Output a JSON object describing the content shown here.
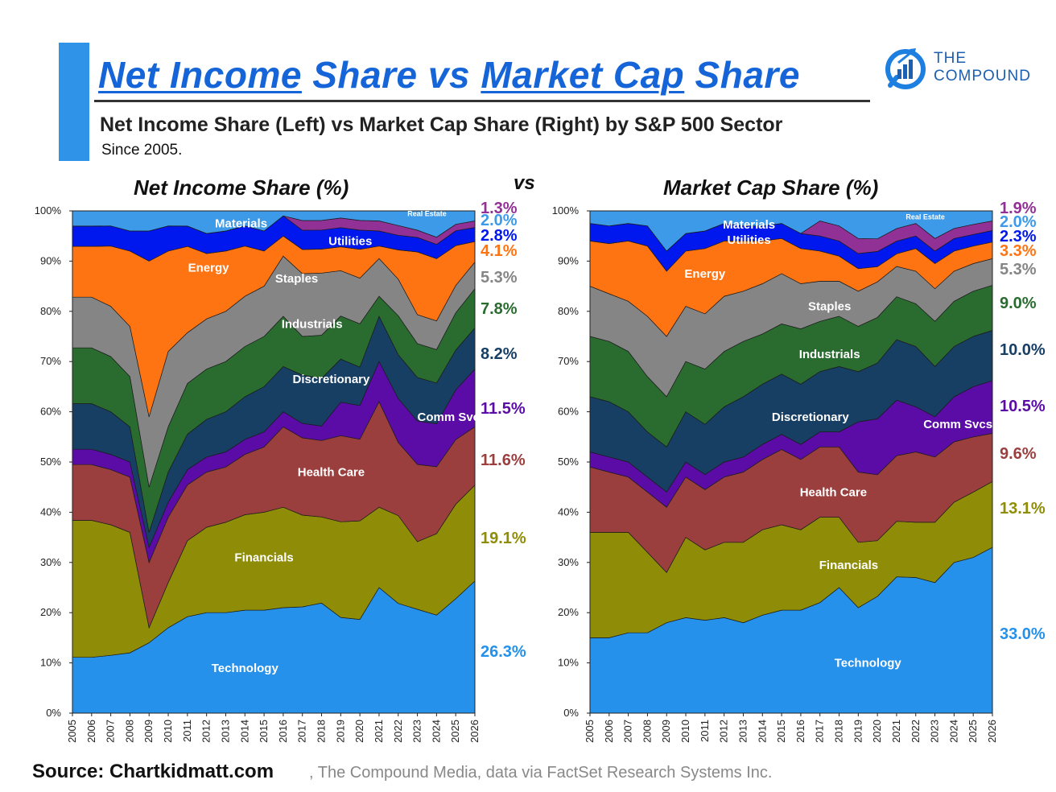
{
  "header": {
    "title_part1": "Net Income",
    "title_part2": " Share vs ",
    "title_part3": "Market Cap",
    "title_part4": " Share",
    "subtitle": "Net Income Share (Left) vs Market Cap Share (Right) by S&P 500 Sector",
    "since": "Since 2005.",
    "vs": "vs"
  },
  "logo": {
    "line1": "THE",
    "line2": "COMPOUND",
    "icon": "compound-logo-icon"
  },
  "footer": {
    "source_bold": "Source: Chartkidmatt.com",
    "source_rest": ", The Compound Media, data via FactSet Research Systems Inc."
  },
  "colors": {
    "Technology": "#2591ea",
    "Financials": "#8f8d08",
    "Health Care": "#9a3f3e",
    "Comm Svcs": "#5c0ca6",
    "Discretionary": "#173e63",
    "Industrials": "#2a6c2f",
    "Staples": "#858585",
    "Energy": "#ff7412",
    "Utilities": "#0017ee",
    "Real Estate": "#923195",
    "Materials": "#3d9ae8",
    "accent": "#1565d8"
  },
  "chart_data": [
    {
      "type": "area",
      "stacked": true,
      "title": "Net Income Share (%)",
      "x": [
        2005,
        2006,
        2007,
        2008,
        2009,
        2010,
        2011,
        2012,
        2013,
        2014,
        2015,
        2016,
        2017,
        2018,
        2019,
        2020,
        2021,
        2022,
        2023,
        2024,
        2025,
        2026
      ],
      "xlim": [
        2005,
        2026
      ],
      "ylim": [
        0,
        100
      ],
      "yticks": [
        "0%",
        "10%",
        "20%",
        "30%",
        "40%",
        "50%",
        "60%",
        "70%",
        "80%",
        "90%",
        "100%"
      ],
      "series": [
        {
          "name": "Technology",
          "label": "Technology",
          "values": [
            11,
            11,
            11.5,
            12,
            14,
            17,
            19,
            20,
            20,
            20.5,
            20.5,
            21,
            22,
            23,
            20,
            19.5,
            25,
            22.5,
            21.5,
            20.5,
            23,
            26.3
          ]
        },
        {
          "name": "Financials",
          "label": "Financials",
          "values": [
            27,
            27,
            26,
            24,
            3,
            9,
            15,
            17,
            18,
            19,
            19.5,
            20,
            19,
            18,
            20,
            20.5,
            16,
            18,
            14,
            17,
            19,
            19.1
          ]
        },
        {
          "name": "Health Care",
          "label": "Health Care",
          "values": [
            11,
            11,
            11,
            11,
            13,
            13,
            11,
            11,
            11,
            12,
            13,
            16,
            16,
            16,
            18,
            17,
            21,
            15,
            16,
            14,
            13,
            11.6
          ]
        },
        {
          "name": "Comm Svcs",
          "label": "Comm Svcs",
          "values": [
            3,
            3,
            3,
            3,
            3,
            3,
            3,
            3,
            3,
            3,
            3,
            3,
            3,
            3,
            7,
            7,
            8,
            9,
            9,
            9,
            10,
            11.5
          ]
        },
        {
          "name": "Discretionary",
          "label": "Discretionary",
          "values": [
            9,
            9,
            8.5,
            7,
            3,
            6,
            7,
            7.5,
            8,
            8.5,
            9,
            9,
            10,
            10,
            9,
            8,
            9,
            9,
            9,
            8.5,
            8,
            8.2
          ]
        },
        {
          "name": "Industrials",
          "label": "Industrials",
          "values": [
            11,
            11,
            11,
            10,
            9,
            9,
            10,
            10,
            10,
            10,
            10,
            10,
            8,
            9,
            9,
            9,
            4,
            8,
            7,
            7,
            7.5,
            7.8
          ]
        },
        {
          "name": "Staples",
          "label": "Staples",
          "values": [
            10,
            10,
            10,
            10,
            14,
            15,
            10,
            10,
            10,
            10,
            10,
            12,
            13,
            13,
            9.5,
            9.5,
            7.5,
            7.5,
            6,
            6,
            5.5,
            5.3
          ]
        },
        {
          "name": "Energy",
          "label": "Energy",
          "values": [
            10,
            10,
            12,
            15,
            31,
            20,
            17,
            13,
            12,
            10,
            7,
            4,
            5,
            5,
            5,
            6,
            2.5,
            6,
            13,
            13,
            8,
            4.1
          ]
        },
        {
          "name": "Utilities",
          "label": "Utilities",
          "values": [
            4,
            4,
            4,
            4,
            6,
            5,
            4,
            4,
            4,
            4,
            4,
            4,
            4,
            4,
            4,
            4,
            3,
            3,
            3,
            3,
            3,
            2.8
          ]
        },
        {
          "name": "Real Estate",
          "label": "Real Estate",
          "values": [
            0,
            0,
            0,
            0,
            0,
            0,
            0,
            0,
            0,
            0,
            0,
            0,
            2,
            2,
            2,
            2,
            2,
            2,
            1.5,
            1.5,
            1.3,
            1.3
          ]
        },
        {
          "name": "Materials",
          "label": "Materials",
          "values": [
            3,
            3,
            3,
            4,
            4,
            3,
            3,
            4.5,
            4,
            3,
            4,
            1,
            2,
            2,
            1.5,
            2,
            2,
            3,
            4,
            5.5,
            2.7,
            2.0
          ]
        }
      ],
      "right_labels": [
        {
          "sector": "Real Estate",
          "text": "1.3%"
        },
        {
          "sector": "Materials",
          "text": "2.0%"
        },
        {
          "sector": "Utilities",
          "text": "2.8%"
        },
        {
          "sector": "Energy",
          "text": "4.1%"
        },
        {
          "sector": "Staples",
          "text": "5.3%"
        },
        {
          "sector": "Industrials",
          "text": "7.8%"
        },
        {
          "sector": "Discretionary",
          "text": "8.2%"
        },
        {
          "sector": "Comm Svcs",
          "text": "11.5%"
        },
        {
          "sector": "Health Care",
          "text": "11.6%"
        },
        {
          "sector": "Financials",
          "text": "19.1%"
        },
        {
          "sector": "Technology",
          "text": "26.3%"
        }
      ]
    },
    {
      "type": "area",
      "stacked": true,
      "title": "Market Cap Share (%)",
      "x": [
        2005,
        2006,
        2007,
        2008,
        2009,
        2010,
        2011,
        2012,
        2013,
        2014,
        2015,
        2016,
        2017,
        2018,
        2019,
        2020,
        2021,
        2022,
        2023,
        2024,
        2025,
        2026
      ],
      "xlim": [
        2005,
        2026
      ],
      "ylim": [
        0,
        100
      ],
      "yticks": [
        "0%",
        "10%",
        "20%",
        "30%",
        "40%",
        "50%",
        "60%",
        "70%",
        "80%",
        "90%",
        "100%"
      ],
      "series": [
        {
          "name": "Technology",
          "label": "Technology",
          "values": [
            15,
            15,
            16,
            16,
            18,
            19,
            18.5,
            19,
            18,
            19.5,
            20.5,
            20.5,
            22,
            25,
            21,
            23,
            27,
            27,
            26,
            30,
            31,
            33.0
          ]
        },
        {
          "name": "Financials",
          "label": "Financials",
          "values": [
            21,
            21,
            20,
            16,
            10,
            16,
            14,
            15,
            16,
            17,
            17,
            16,
            17,
            14,
            13,
            11,
            11,
            11,
            12,
            12,
            13,
            13.1
          ]
        },
        {
          "name": "Health Care",
          "label": "Health Care",
          "values": [
            13,
            12,
            11,
            12,
            13,
            12,
            12,
            13,
            14,
            14,
            15,
            14,
            14,
            14,
            14,
            13,
            13,
            14,
            13,
            12,
            11,
            9.6
          ]
        },
        {
          "name": "Comm Svcs",
          "label": "Comm Svcs",
          "values": [
            3,
            3,
            3,
            3,
            3,
            3,
            3,
            3,
            3,
            3,
            3,
            3,
            3,
            3,
            10,
            11,
            11,
            9,
            8,
            9,
            10,
            10.5
          ]
        },
        {
          "name": "Discretionary",
          "label": "Discretionary",
          "values": [
            11,
            11,
            10,
            9,
            9,
            10,
            10,
            11,
            12,
            12,
            12,
            12,
            12,
            13,
            10,
            11,
            12,
            12,
            10,
            10,
            10,
            10.0
          ]
        },
        {
          "name": "Industrials",
          "label": "Industrials",
          "values": [
            12,
            12,
            12,
            11,
            10,
            10,
            11,
            11,
            11,
            10,
            10,
            11,
            10,
            10,
            9,
            9,
            8.5,
            8.5,
            9,
            9,
            9,
            9.0
          ]
        },
        {
          "name": "Staples",
          "label": "Staples",
          "values": [
            10,
            9.5,
            10,
            12,
            12,
            11,
            11,
            11,
            10,
            10,
            10,
            9,
            8,
            7,
            7,
            7,
            6,
            6.5,
            6.5,
            6,
            5.5,
            5.3
          ]
        },
        {
          "name": "Energy",
          "label": "Energy",
          "values": [
            9,
            10,
            12,
            14,
            13,
            11,
            13,
            11,
            10,
            8.5,
            7,
            7,
            6,
            5,
            4.5,
            3,
            2.5,
            4.5,
            5,
            4,
            3.5,
            3.3
          ]
        },
        {
          "name": "Utilities",
          "label": "Utilities",
          "values": [
            3.5,
            3.5,
            3.5,
            4,
            4,
            3.5,
            3.5,
            3.5,
            3,
            3,
            3,
            3,
            3,
            3,
            3,
            3,
            2.5,
            2.5,
            2.5,
            2.5,
            2.3,
            2.3
          ]
        },
        {
          "name": "Real Estate",
          "label": "Real Estate",
          "values": [
            0,
            0,
            0,
            0,
            0,
            0,
            0,
            0,
            0,
            0,
            0,
            0,
            3,
            3,
            3,
            2.5,
            2.5,
            2.5,
            2.5,
            2,
            2,
            1.9
          ]
        },
        {
          "name": "Materials",
          "label": "Materials",
          "values": [
            2.5,
            3,
            2.5,
            3,
            8,
            4.5,
            4,
            2.5,
            3,
            3,
            2.5,
            4.5,
            2,
            3,
            5.5,
            5.5,
            3.5,
            2.5,
            5.5,
            3.5,
            2.7,
            2.0
          ]
        }
      ],
      "right_labels": [
        {
          "sector": "Real Estate",
          "text": "1.9%"
        },
        {
          "sector": "Materials",
          "text": "2.0%"
        },
        {
          "sector": "Utilities",
          "text": "2.3%"
        },
        {
          "sector": "Energy",
          "text": "3.3%"
        },
        {
          "sector": "Staples",
          "text": "5.3%"
        },
        {
          "sector": "Industrials",
          "text": "9.0%"
        },
        {
          "sector": "Discretionary",
          "text": "10.0%"
        },
        {
          "sector": "Comm Svcs",
          "text": "10.5%"
        },
        {
          "sector": "Health Care",
          "text": "9.6%"
        },
        {
          "sector": "Financials",
          "text": "13.1%"
        },
        {
          "sector": "Technology",
          "text": "33.0%"
        }
      ]
    }
  ]
}
